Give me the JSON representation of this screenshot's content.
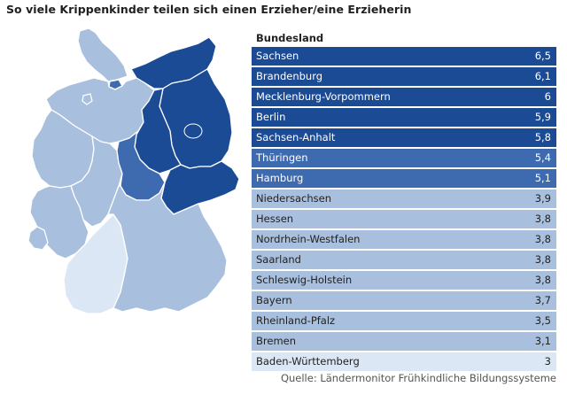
{
  "title": "So viele Krippenkinder teilen sich einen Erzieher/eine Erzieherin",
  "source": "Quelle: Ländermonitor Frühkindliche Bildungssysteme",
  "colors": {
    "level1": "#1b4b95",
    "level2": "#3e6bb0",
    "level3": "#a8bfdd",
    "level4": "#dce7f5",
    "text_dark_bg": "#ffffff",
    "text_light_bg": "#222222"
  },
  "chart_data": {
    "type": "table",
    "title": "So viele Krippenkinder teilen sich einen Erzieher/eine Erzieherin",
    "column_header": "Bundesland",
    "categories": [
      "Sachsen",
      "Brandenburg",
      "Mecklenburg-Vorpommern",
      "Berlin",
      "Sachsen-Anhalt",
      "Thüringen",
      "Hamburg",
      "Niedersachsen",
      "Hessen",
      "Nordrhein-Westfalen",
      "Saarland",
      "Schleswig-Holstein",
      "Bayern",
      "Rheinland-Pfalz",
      "Bremen",
      "Baden-Württemberg"
    ],
    "values": [
      6.5,
      6.1,
      6,
      5.9,
      5.8,
      5.4,
      5.1,
      3.9,
      3.8,
      3.8,
      3.8,
      3.8,
      3.7,
      3.5,
      3.1,
      3
    ],
    "value_labels": [
      "6,5",
      "6,1",
      "6",
      "5,9",
      "5,8",
      "5,4",
      "5,1",
      "3,9",
      "3,8",
      "3,8",
      "3,8",
      "3,8",
      "3,7",
      "3,5",
      "3,1",
      "3"
    ],
    "map_levels": {
      "Schleswig-Holstein": 3,
      "Hamburg": 2,
      "Mecklenburg-Vorpommern": 1,
      "Bremen": 3,
      "Niedersachsen": 3,
      "Berlin": 1,
      "Brandenburg": 1,
      "Sachsen-Anhalt": 1,
      "Nordrhein-Westfalen": 3,
      "Hessen": 3,
      "Thüringen": 2,
      "Sachsen": 1,
      "Rheinland-Pfalz": 3,
      "Saarland": 3,
      "Bayern": 3,
      "Baden-Württemberg": 4
    }
  }
}
